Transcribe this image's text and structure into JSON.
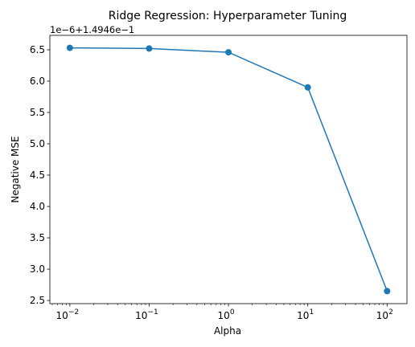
{
  "chart_data": {
    "type": "line",
    "title": "Ridge Regression: Hyperparameter Tuning",
    "xlabel": "Alpha",
    "ylabel": "Negative MSE",
    "xscale": "log",
    "x": [
      0.01,
      0.1,
      1,
      10,
      100
    ],
    "y_offset_label": "1e−6+1.4946e−1",
    "series": [
      {
        "values": [
          6.53,
          6.52,
          6.46,
          5.9,
          2.65
        ],
        "color": "#1f77b4",
        "marker": "circle"
      }
    ],
    "xlim": [
      0.0056,
      178
    ],
    "ylim": [
      2.45,
      6.73
    ],
    "xticks": [
      {
        "value": 0.01,
        "base": "10",
        "exp": "−2"
      },
      {
        "value": 0.1,
        "base": "10",
        "exp": "−1"
      },
      {
        "value": 1,
        "base": "10",
        "exp": "0"
      },
      {
        "value": 10,
        "base": "10",
        "exp": "1"
      },
      {
        "value": 100,
        "base": "10",
        "exp": "2"
      }
    ],
    "yticks": [
      "2.5",
      "3.0",
      "3.5",
      "4.0",
      "4.5",
      "5.0",
      "5.5",
      "6.0",
      "6.5"
    ],
    "grid": false
  }
}
